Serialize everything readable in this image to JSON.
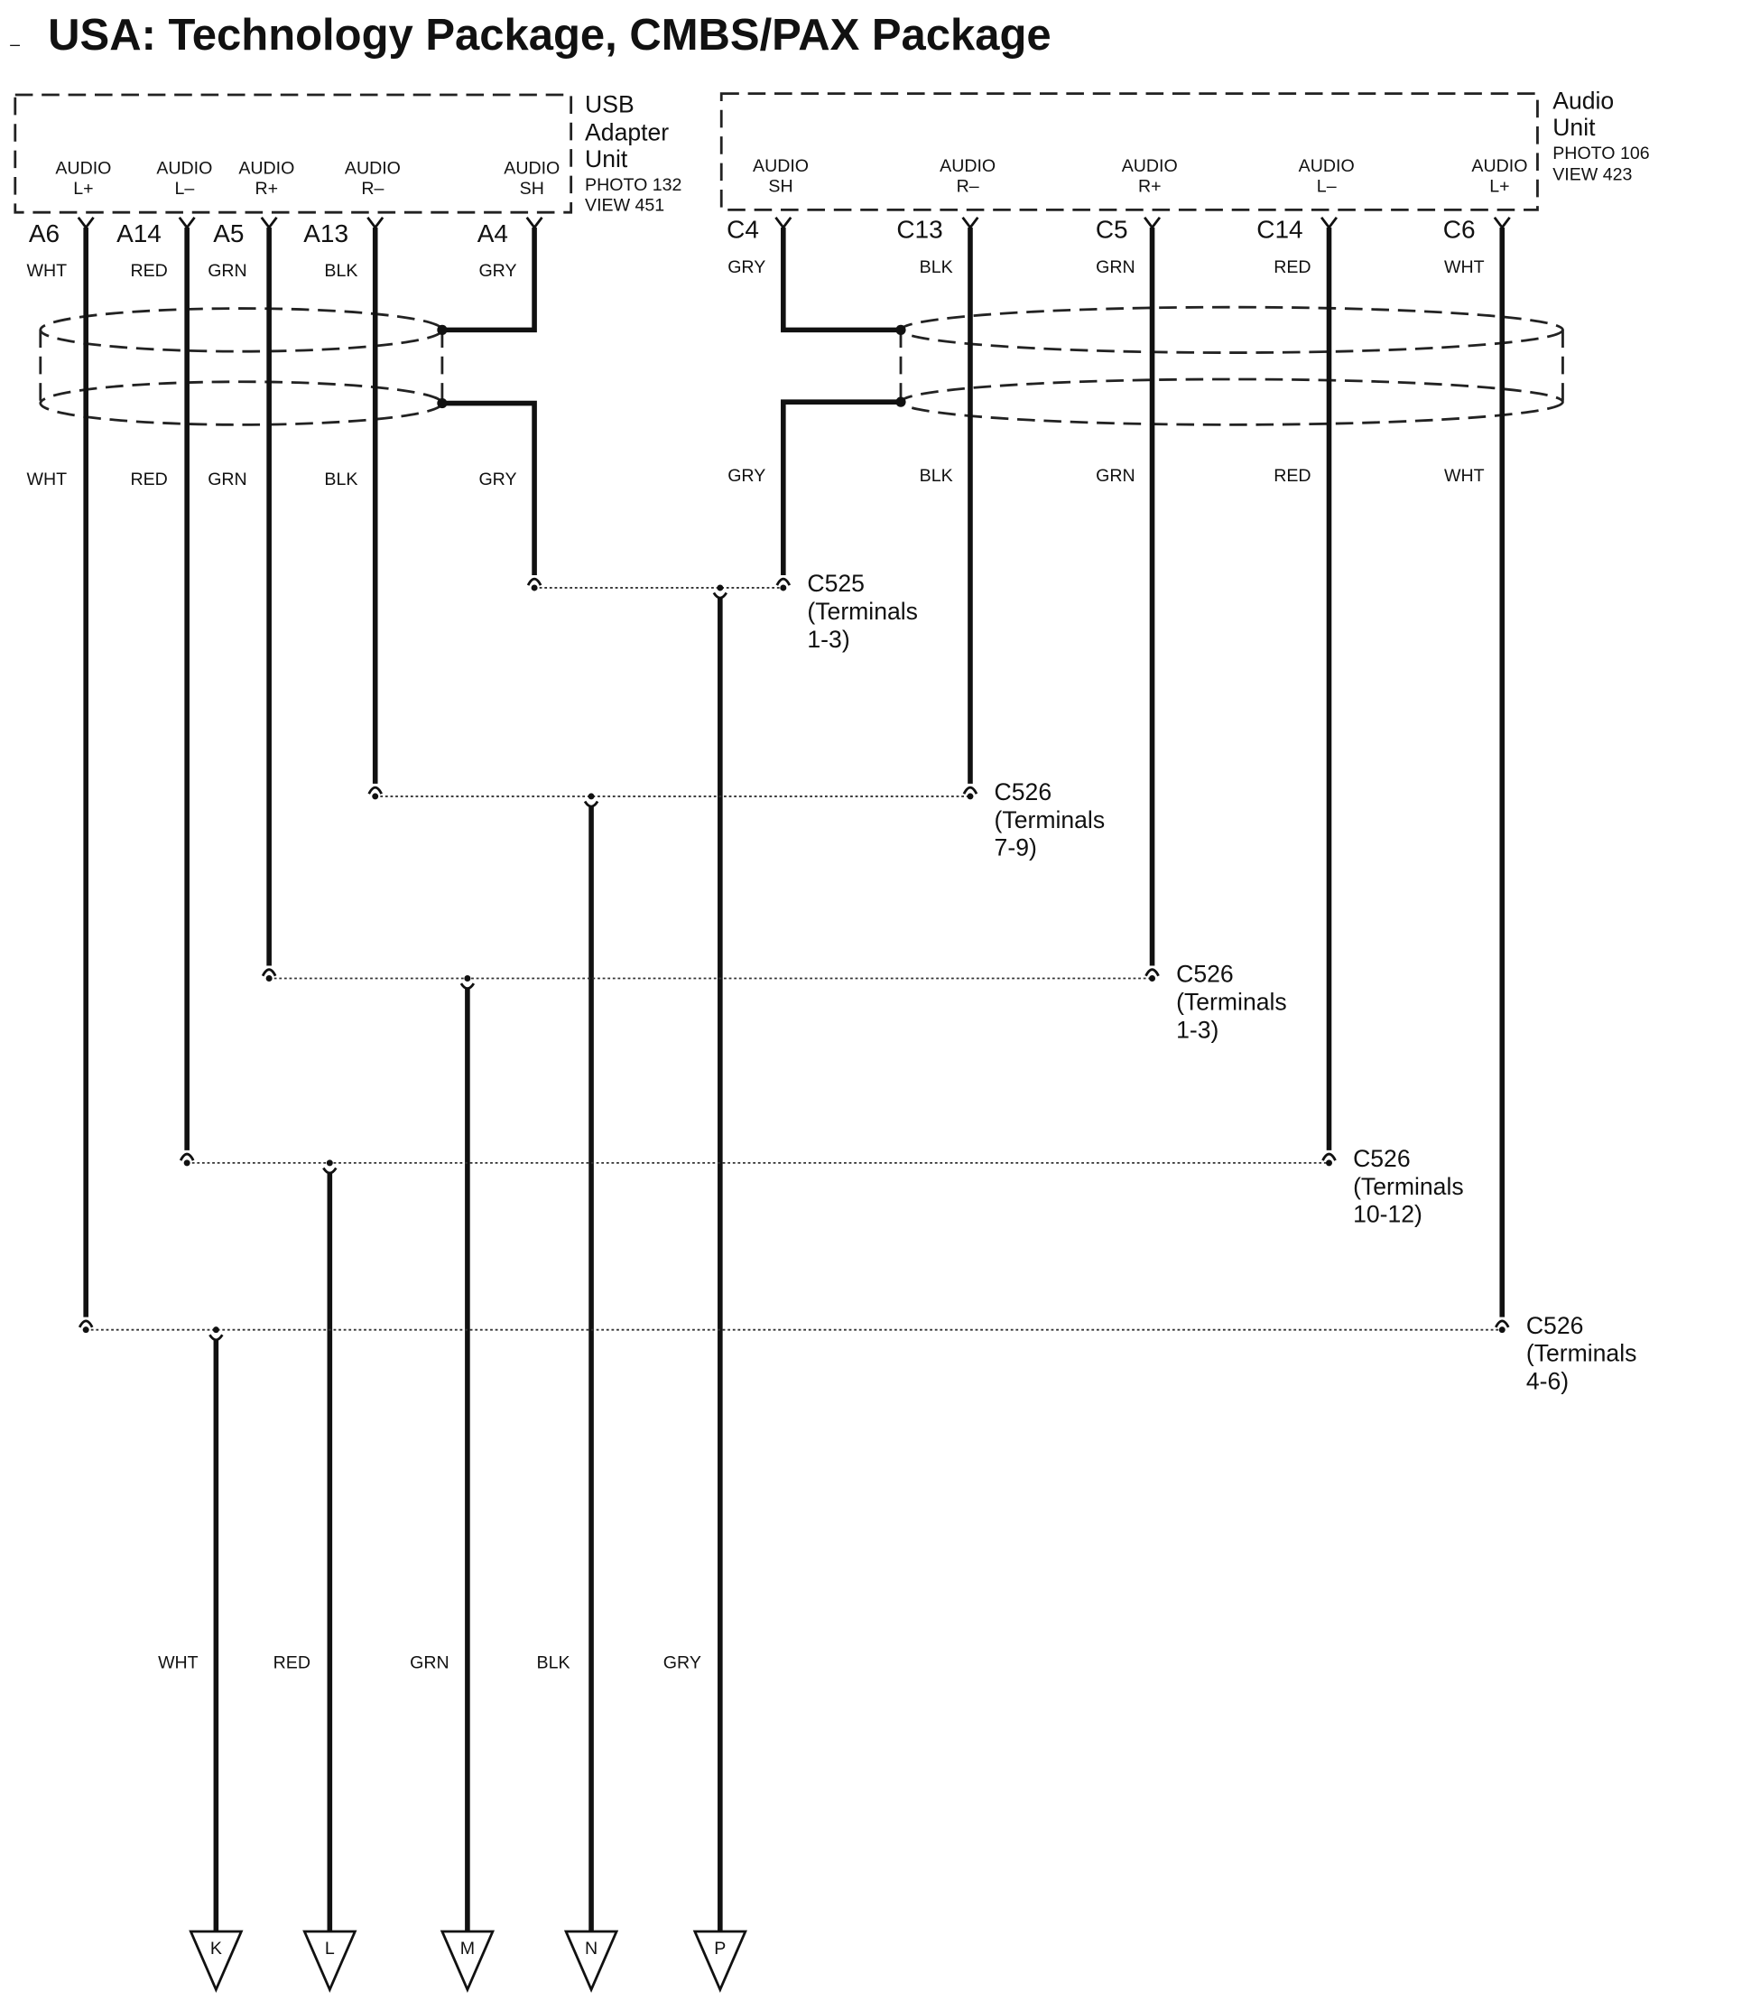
{
  "title": "USA: Technology Package, CMBS/PAX Package",
  "usb_unit": {
    "name": [
      "USB",
      "Adapter",
      "Unit"
    ],
    "refs": [
      "PHOTO 132",
      "VIEW 451"
    ],
    "pins": [
      {
        "terminal": [
          "AUDIO",
          "L+"
        ],
        "cavity": "A6",
        "wire_top": "WHT",
        "wire_mid": "WHT"
      },
      {
        "terminal": [
          "AUDIO",
          "L–"
        ],
        "cavity": "A14",
        "wire_top": "RED",
        "wire_mid": "RED"
      },
      {
        "terminal": [
          "AUDIO",
          "R+"
        ],
        "cavity": "A5",
        "wire_top": "GRN",
        "wire_mid": "GRN"
      },
      {
        "terminal": [
          "AUDIO",
          "R–"
        ],
        "cavity": "A13",
        "wire_top": "BLK",
        "wire_mid": "BLK"
      },
      {
        "terminal": [
          "AUDIO",
          "SH"
        ],
        "cavity": "A4",
        "wire_top": "GRY",
        "wire_mid": "GRY"
      }
    ]
  },
  "audio_unit": {
    "name": [
      "Audio",
      "Unit"
    ],
    "refs": [
      "PHOTO 106",
      "VIEW 423"
    ],
    "pins": [
      {
        "terminal": [
          "AUDIO",
          "SH"
        ],
        "cavity": "C4",
        "wire_top": "GRY",
        "wire_mid": "GRY"
      },
      {
        "terminal": [
          "AUDIO",
          "R–"
        ],
        "cavity": "C13",
        "wire_top": "BLK",
        "wire_mid": "BLK"
      },
      {
        "terminal": [
          "AUDIO",
          "R+"
        ],
        "cavity": "C5",
        "wire_top": "GRN",
        "wire_mid": "GRN"
      },
      {
        "terminal": [
          "AUDIO",
          "L–"
        ],
        "cavity": "C14",
        "wire_top": "RED",
        "wire_mid": "RED"
      },
      {
        "terminal": [
          "AUDIO",
          "L+"
        ],
        "cavity": "C6",
        "wire_top": "WHT",
        "wire_mid": "WHT"
      }
    ]
  },
  "connectors": [
    {
      "name": "C525",
      "lines": [
        "(Terminals",
        "1-3)"
      ]
    },
    {
      "name": "C526",
      "lines": [
        "(Terminals",
        "7-9)"
      ]
    },
    {
      "name": "C526",
      "lines": [
        "(Terminals",
        "1-3)"
      ]
    },
    {
      "name": "C526",
      "lines": [
        "(Terminals",
        "10-12)"
      ]
    },
    {
      "name": "C526",
      "lines": [
        "(Terminals",
        "4-6)"
      ]
    }
  ],
  "outputs": [
    {
      "wire": "WHT",
      "end": "K"
    },
    {
      "wire": "RED",
      "end": "L"
    },
    {
      "wire": "GRN",
      "end": "M"
    },
    {
      "wire": "BLK",
      "end": "N"
    },
    {
      "wire": "GRY",
      "end": "P"
    }
  ]
}
